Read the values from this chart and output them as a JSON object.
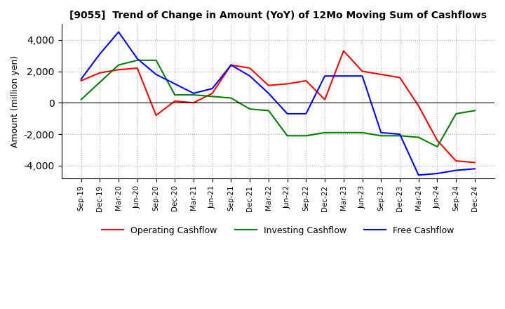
{
  "title": "[9055]  Trend of Change in Amount (YoY) of 12Mo Moving Sum of Cashflows",
  "ylabel": "Amount (million yen)",
  "ylim": [
    -4800,
    5000
  ],
  "yticks": [
    -4000,
    -2000,
    0,
    2000,
    4000
  ],
  "x_labels": [
    "Sep-19",
    "Dec-19",
    "Mar-20",
    "Jun-20",
    "Sep-20",
    "Dec-20",
    "Mar-21",
    "Jun-21",
    "Sep-21",
    "Dec-21",
    "Mar-22",
    "Jun-22",
    "Sep-22",
    "Dec-22",
    "Mar-23",
    "Jun-23",
    "Sep-23",
    "Dec-23",
    "Mar-24",
    "Jun-24",
    "Sep-24",
    "Dec-24"
  ],
  "operating": [
    1400,
    1900,
    2100,
    2200,
    -800,
    100,
    0,
    600,
    2400,
    2200,
    1100,
    1200,
    1400,
    200,
    3300,
    2000,
    1800,
    1600,
    -200,
    -2400,
    -3700,
    -3800
  ],
  "investing": [
    200,
    1300,
    2400,
    2700,
    2700,
    500,
    500,
    400,
    300,
    -400,
    -500,
    -2100,
    -2100,
    -1900,
    -1900,
    -1900,
    -2100,
    -2100,
    -2200,
    -2800,
    -700,
    -500
  ],
  "free": [
    1500,
    3100,
    4500,
    2800,
    1800,
    1200,
    600,
    900,
    2400,
    1700,
    600,
    -700,
    -700,
    1700,
    1700,
    1700,
    -1900,
    -2000,
    -4600,
    -4500,
    -4300,
    -4200
  ],
  "operating_color": "#ff0000",
  "investing_color": "#008000",
  "free_color": "#0000ff",
  "background_color": "#ffffff",
  "grid_color": "#aaaaaa"
}
